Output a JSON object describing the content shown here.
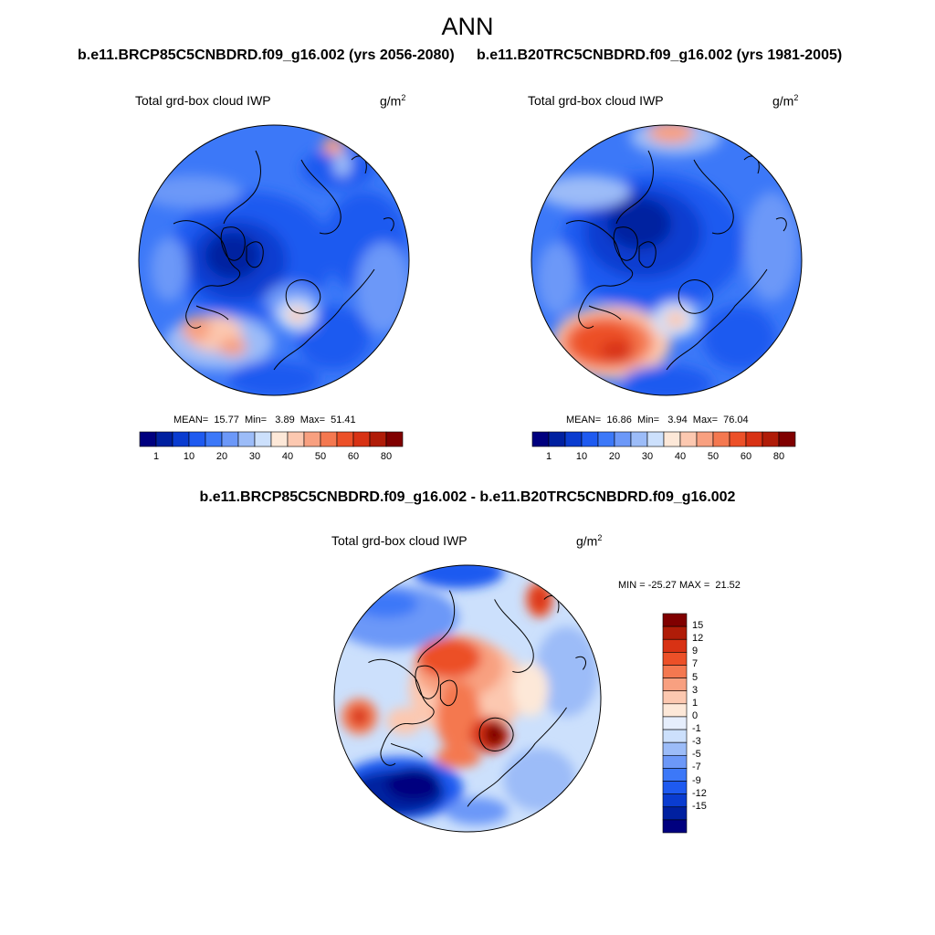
{
  "figure": {
    "title": "ANN",
    "left_case": "b.e11.BRCP85C5CNBDRD.f09_g16.002 (yrs 2056-2080)",
    "right_case": "b.e11.B20TRC5CNBDRD.f09_g16.002 (yrs 1981-2005)",
    "diff_title": "b.e11.BRCP85C5CNBDRD.f09_g16.002 - b.e11.B20TRC5CNBDRD.f09_g16.002"
  },
  "panels": {
    "left": {
      "variable": "Total grd-box cloud IWP",
      "units": "g/m",
      "units_sup": "2",
      "stats": "MEAN=  15.77  Min=   3.89  Max=  51.41"
    },
    "right": {
      "variable": "Total grd-box cloud IWP",
      "units": "g/m",
      "units_sup": "2",
      "stats": "MEAN=  16.86  Min=   3.94  Max=  76.04"
    },
    "diff": {
      "variable": "Total grd-box cloud IWP",
      "units": "g/m",
      "units_sup": "2",
      "stats": "MIN = -25.27 MAX =  21.52"
    }
  },
  "colorbars": {
    "abs_labels": [
      "1",
      "10",
      "20",
      "30",
      "40",
      "50",
      "60",
      "80"
    ],
    "abs_colors": [
      "#00007f",
      "#0020a0",
      "#0a3cd0",
      "#1e5af0",
      "#3c78f8",
      "#6c98f8",
      "#9cbcf8",
      "#cce0fc",
      "#fde8d8",
      "#fcc8b0",
      "#f8a080",
      "#f47850",
      "#ec5028",
      "#d83214",
      "#b01c08",
      "#800000"
    ],
    "diff_labels": [
      "15",
      "12",
      "9",
      "7",
      "5",
      "3",
      "1",
      "0",
      "-1",
      "-3",
      "-5",
      "-7",
      "-9",
      "-12",
      "-15"
    ],
    "diff_colors": [
      "#800000",
      "#b01c08",
      "#d83214",
      "#ec5028",
      "#f47850",
      "#f8a080",
      "#fcc8b0",
      "#fde8d8",
      "#e6eefc",
      "#cce0fc",
      "#9cbcf8",
      "#6c98f8",
      "#3c78f8",
      "#1e5af0",
      "#0a3cd0",
      "#0020a0",
      "#00007f"
    ]
  }
}
